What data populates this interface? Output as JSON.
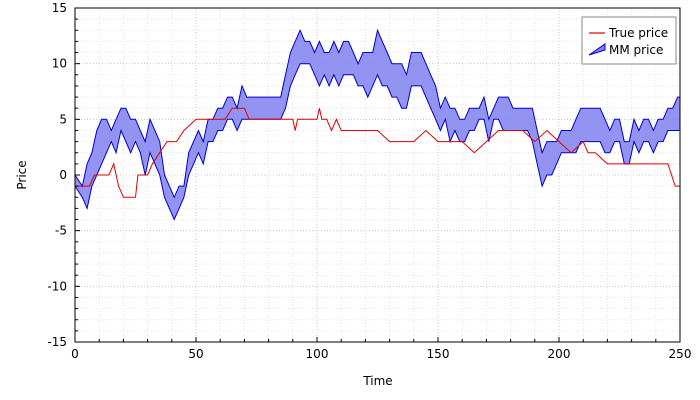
{
  "chart_data": {
    "type": "line",
    "xlabel": "Time",
    "ylabel": "Price",
    "xlim": [
      0,
      250
    ],
    "ylim": [
      -15,
      15
    ],
    "xticks": [
      "0",
      "50",
      "100",
      "150",
      "200",
      "250"
    ],
    "yticks": [
      "15",
      "10",
      "5",
      "0",
      "-5",
      "-10",
      "-15"
    ],
    "grid": true,
    "legend_position": "top-right",
    "colors": {
      "true_price": "#e00000",
      "mm_band_fill": "#8080f0",
      "mm_band_edge": "#0000cc"
    },
    "series": [
      {
        "name": "True price",
        "kind": "line",
        "x": [
          0,
          5,
          6,
          8,
          10,
          12,
          14,
          16,
          18,
          20,
          25,
          26,
          28,
          30,
          32,
          35,
          38,
          40,
          42,
          45,
          50,
          55,
          60,
          62,
          65,
          67,
          70,
          72,
          75,
          80,
          85,
          90,
          91,
          92,
          95,
          100,
          101,
          102,
          104,
          106,
          108,
          110,
          113,
          116,
          120,
          125,
          130,
          135,
          140,
          145,
          150,
          155,
          160,
          165,
          170,
          175,
          180,
          185,
          190,
          195,
          200,
          205,
          210,
          212,
          215,
          220,
          225,
          230,
          235,
          240,
          245,
          248,
          250
        ],
        "y": [
          -1,
          -1,
          -1,
          0,
          0,
          0,
          0,
          1,
          -1,
          -2,
          -2,
          0,
          0,
          0,
          1,
          2,
          3,
          3,
          3,
          4,
          5,
          5,
          5,
          5,
          6,
          6,
          6,
          5,
          5,
          5,
          5,
          5,
          4,
          5,
          5,
          5,
          6,
          5,
          5,
          4,
          5,
          4,
          4,
          4,
          4,
          4,
          3,
          3,
          3,
          4,
          3,
          3,
          3,
          2,
          3,
          4,
          4,
          4,
          3,
          4,
          3,
          2,
          3,
          2,
          2,
          1,
          1,
          1,
          1,
          1,
          1,
          -1,
          -1
        ]
      },
      {
        "name": "MM price",
        "kind": "band",
        "x": [
          0,
          3,
          5,
          7,
          9,
          11,
          13,
          15,
          17,
          19,
          21,
          23,
          25,
          27,
          29,
          31,
          33,
          35,
          37,
          39,
          41,
          43,
          45,
          47,
          49,
          51,
          53,
          55,
          57,
          59,
          61,
          63,
          65,
          67,
          69,
          71,
          73,
          75,
          77,
          79,
          81,
          83,
          85,
          87,
          89,
          91,
          93,
          95,
          97,
          99,
          101,
          103,
          105,
          107,
          109,
          111,
          113,
          115,
          117,
          119,
          121,
          123,
          125,
          127,
          129,
          131,
          133,
          135,
          137,
          139,
          141,
          143,
          145,
          147,
          149,
          151,
          153,
          155,
          157,
          159,
          161,
          163,
          165,
          167,
          169,
          171,
          173,
          175,
          177,
          179,
          181,
          183,
          185,
          187,
          189,
          191,
          193,
          195,
          197,
          199,
          201,
          203,
          205,
          207,
          209,
          211,
          213,
          215,
          217,
          219,
          221,
          223,
          225,
          227,
          229,
          231,
          233,
          235,
          237,
          239,
          241,
          243,
          245,
          247,
          249,
          250
        ],
        "low": [
          -1,
          -2,
          -3,
          -1,
          0,
          1,
          2,
          3,
          2,
          4,
          3,
          2,
          3,
          2,
          0,
          2,
          1,
          0,
          -2,
          -3,
          -4,
          -3,
          -2,
          0,
          1,
          2,
          1,
          3,
          3,
          4,
          4,
          5,
          5,
          4,
          5,
          5,
          5,
          5,
          5,
          5,
          5,
          5,
          5,
          6,
          8,
          9,
          10,
          10,
          10,
          9,
          8,
          9,
          8,
          9,
          8,
          9,
          9,
          9,
          8,
          8,
          7,
          8,
          9,
          8,
          8,
          7,
          7,
          6,
          6,
          8,
          8,
          8,
          7,
          6,
          5,
          4,
          5,
          3,
          4,
          3,
          3,
          4,
          4,
          5,
          5,
          3,
          5,
          5,
          4,
          4,
          4,
          4,
          4,
          4,
          3,
          1,
          -1,
          0,
          0,
          1,
          2,
          2,
          2,
          2,
          3,
          3,
          3,
          3,
          3,
          2,
          2,
          3,
          3,
          1,
          1,
          3,
          2,
          3,
          3,
          2,
          3,
          3,
          4,
          4,
          4,
          4
        ],
        "high": [
          0,
          -1,
          1,
          2,
          4,
          5,
          5,
          4,
          5,
          6,
          6,
          5,
          5,
          4,
          3,
          5,
          4,
          3,
          0,
          -1,
          -2,
          -1,
          -1,
          2,
          3,
          4,
          3,
          5,
          5,
          6,
          6,
          7,
          7,
          6,
          8,
          7,
          7,
          7,
          7,
          7,
          7,
          7,
          7,
          9,
          11,
          12,
          13,
          12,
          12,
          11,
          12,
          11,
          11,
          12,
          11,
          12,
          12,
          11,
          10,
          11,
          11,
          11,
          13,
          12,
          11,
          10,
          10,
          10,
          9,
          11,
          11,
          11,
          10,
          9,
          8,
          6,
          7,
          6,
          6,
          5,
          5,
          6,
          6,
          6,
          7,
          5,
          6,
          7,
          7,
          7,
          6,
          6,
          6,
          6,
          6,
          4,
          2,
          3,
          3,
          3,
          4,
          4,
          4,
          5,
          6,
          6,
          6,
          6,
          6,
          5,
          4,
          5,
          5,
          3,
          3,
          5,
          4,
          5,
          5,
          4,
          5,
          5,
          6,
          6,
          7,
          7
        ]
      }
    ]
  }
}
